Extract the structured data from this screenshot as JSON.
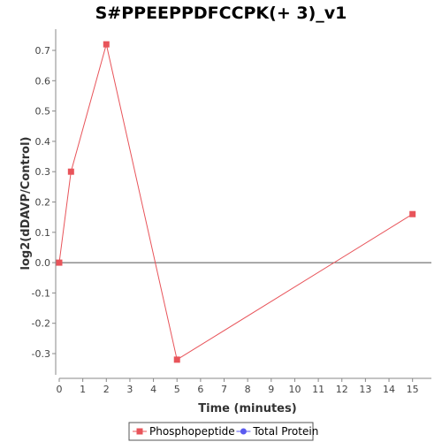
{
  "chart_data": {
    "type": "line",
    "title": "S#PPEEPPDFCCPK(+ 3)_v1",
    "xlabel": "Time (minutes)",
    "ylabel": "log2(dDAVP/Control)",
    "xlim": [
      0,
      15.8
    ],
    "ylim": [
      -0.37,
      0.77
    ],
    "x_ticks": [
      0,
      1,
      2,
      3,
      4,
      5,
      6,
      7,
      8,
      9,
      10,
      11,
      12,
      13,
      14,
      15
    ],
    "y_ticks": [
      -0.3,
      -0.2,
      -0.1,
      0.0,
      0.1,
      0.2,
      0.3,
      0.4,
      0.5,
      0.6,
      0.7
    ],
    "y_tick_labels": [
      "-0.3",
      "-0.2",
      "-0.1",
      "0.0",
      "0.1",
      "0.2",
      "0.3",
      "0.4",
      "0.5",
      "0.6",
      "0.7"
    ],
    "zero_line": true,
    "grid": false,
    "legend_position": "bottom",
    "series": [
      {
        "name": "Phosphopeptide",
        "color": "#e8545a",
        "marker": "square",
        "x": [
          0,
          0.5,
          2,
          5,
          15
        ],
        "y": [
          0.0,
          0.3,
          0.72,
          -0.32,
          0.16
        ]
      },
      {
        "name": "Total Protein",
        "color": "#5a5af0",
        "marker": "circle",
        "x": [],
        "y": []
      }
    ]
  }
}
